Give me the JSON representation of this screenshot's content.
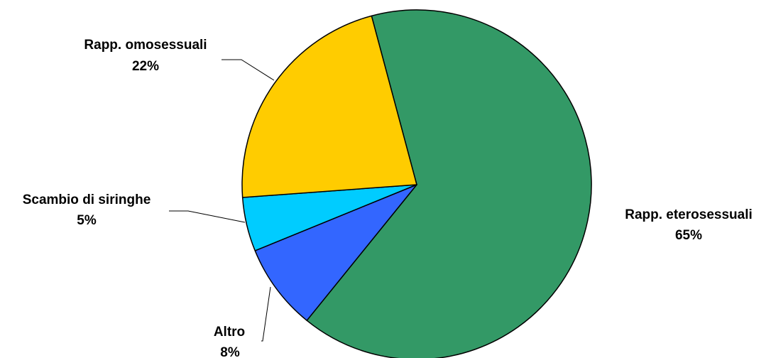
{
  "chart_data": {
    "type": "pie",
    "title": "",
    "slices": [
      {
        "label": "Rapp. eterosessuali",
        "value": 65,
        "value_label": "65%",
        "color": "#339966"
      },
      {
        "label": "Altro",
        "value": 8,
        "value_label": "8%",
        "color": "#3366FF"
      },
      {
        "label": "Scambio di siringhe",
        "value": 5,
        "value_label": "5%",
        "color": "#00CCFF"
      },
      {
        "label": "Rapp. omosessuali",
        "value": 22,
        "value_label": "22%",
        "color": "#FFCC00"
      }
    ],
    "start_angle_deg": -15,
    "direction": "clockwise",
    "legend": "none",
    "data_labels": "outside with leader lines"
  }
}
